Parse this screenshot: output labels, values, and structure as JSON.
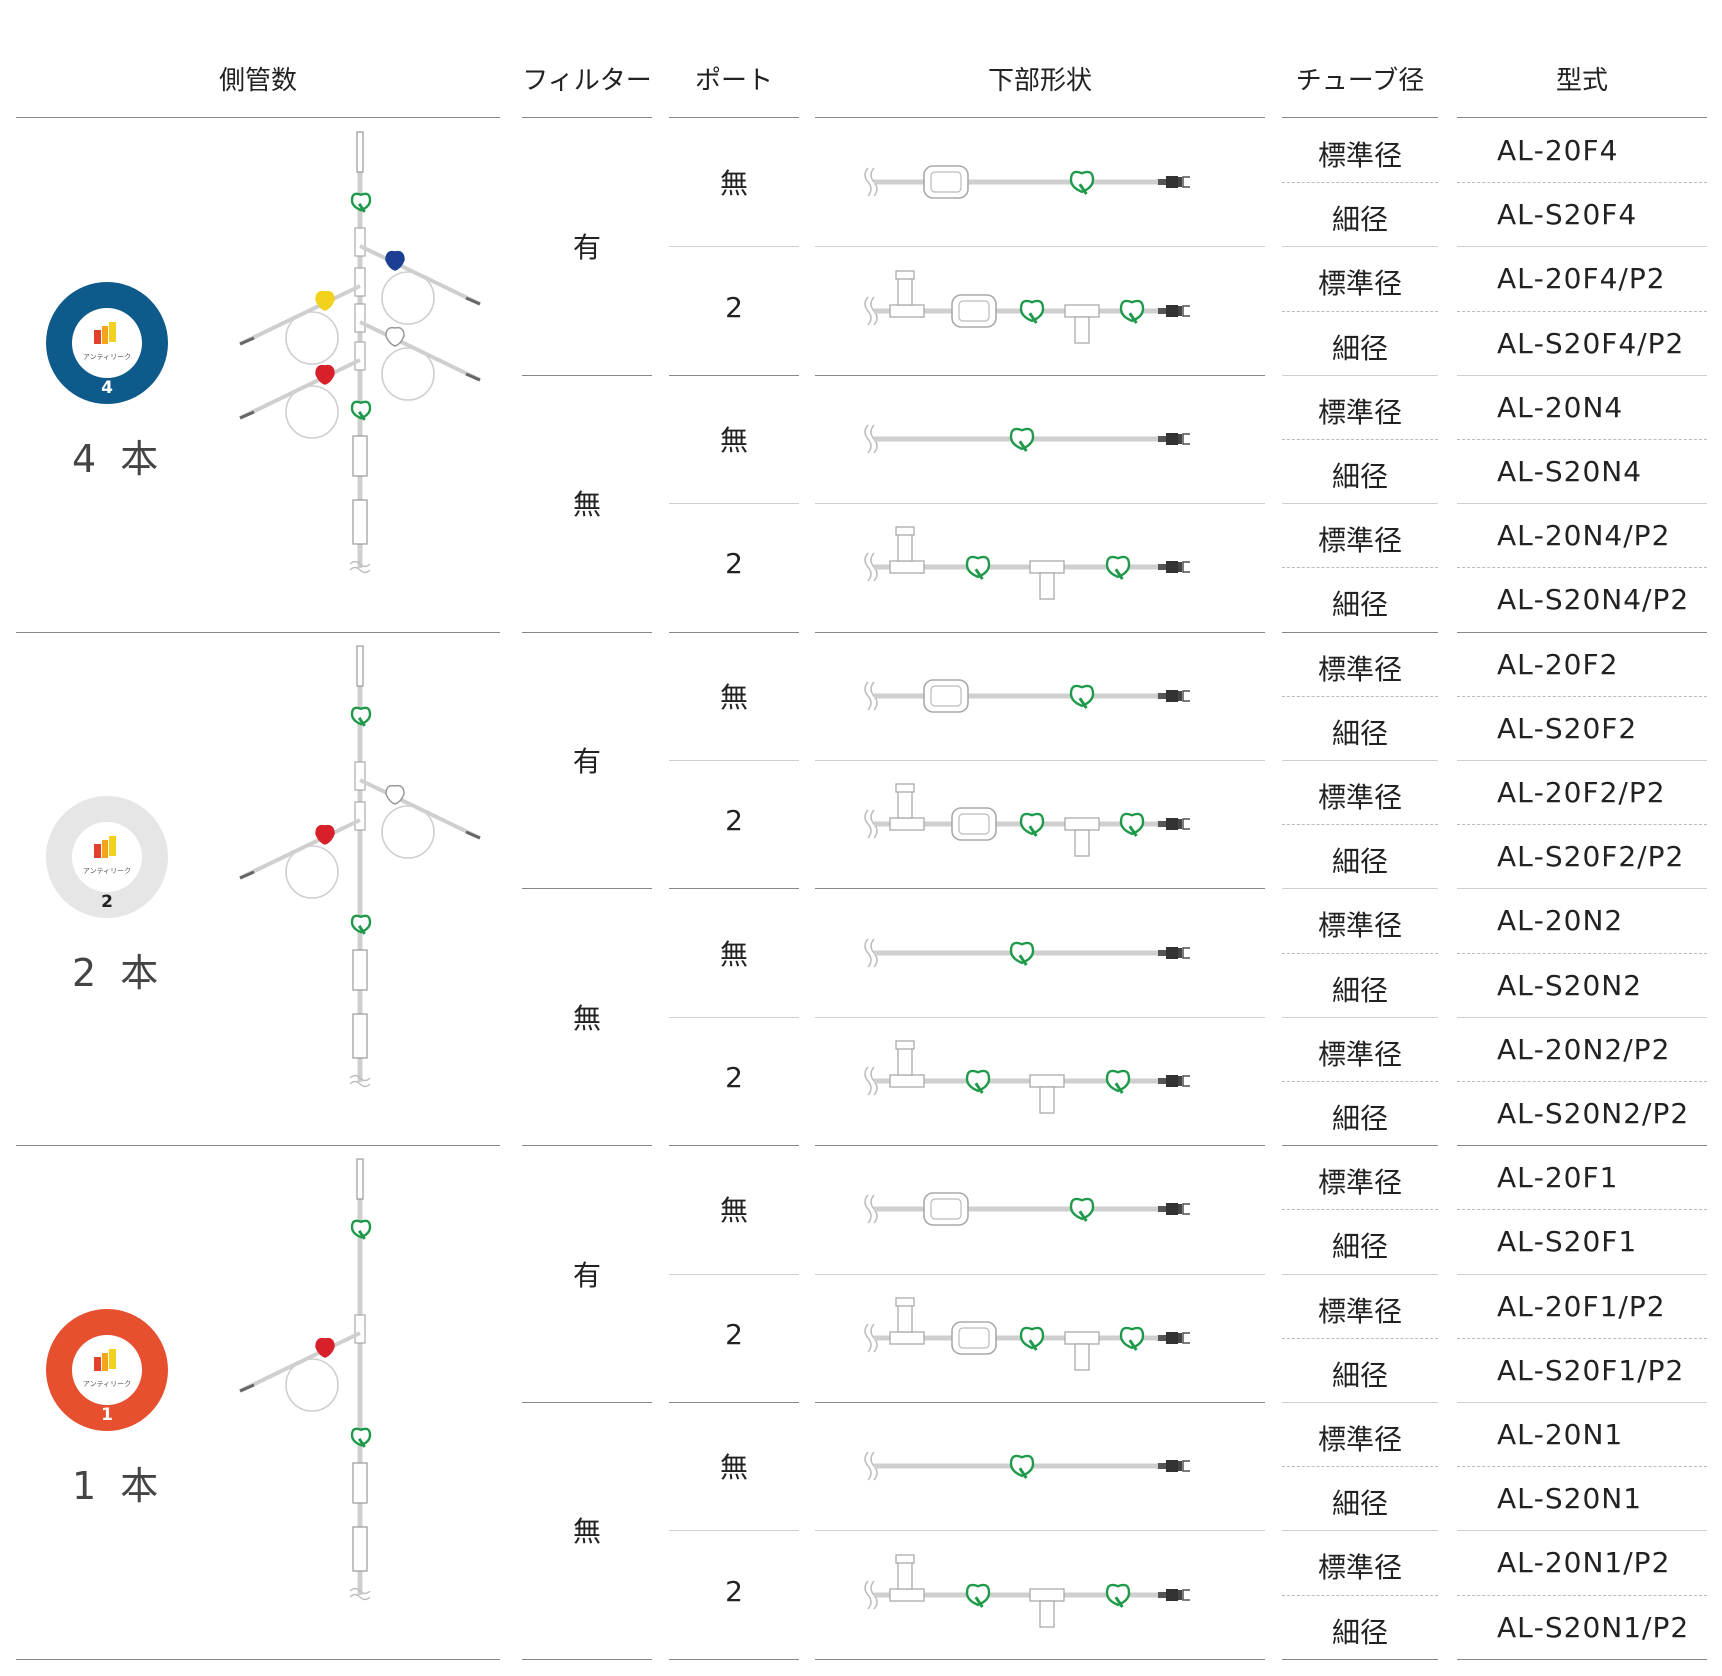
{
  "headers": {
    "sidetubes": "側管数",
    "filter": "フィルター",
    "port": "ポート",
    "shape": "下部形状",
    "tube": "チューブ径",
    "model": "型式"
  },
  "groups": [
    {
      "count_label": "4 本",
      "badge_number": "4",
      "badge_color": "#0e5a8a",
      "badge_text": "アンティリーク",
      "filters": [
        {
          "label": "有",
          "ports": [
            {
              "label": "無",
              "rows": [
                {
                  "tube": "標準径",
                  "model": "AL‐20F4"
                },
                {
                  "tube": "細径",
                  "model": "AL‐S20F4"
                }
              ]
            },
            {
              "label": "2",
              "rows": [
                {
                  "tube": "標準径",
                  "model": "AL‐20F4/P2"
                },
                {
                  "tube": "細径",
                  "model": "AL‐S20F4/P2"
                }
              ]
            }
          ]
        },
        {
          "label": "無",
          "ports": [
            {
              "label": "無",
              "rows": [
                {
                  "tube": "標準径",
                  "model": "AL‐20N4"
                },
                {
                  "tube": "細径",
                  "model": "AL‐S20N4"
                }
              ]
            },
            {
              "label": "2",
              "rows": [
                {
                  "tube": "標準径",
                  "model": "AL‐20N4/P2"
                },
                {
                  "tube": "細径",
                  "model": "AL‐S20N4/P2"
                }
              ]
            }
          ]
        }
      ]
    },
    {
      "count_label": "2 本",
      "badge_number": "2",
      "badge_color": "#e6e6e6",
      "badge_text": "アンティリーク",
      "filters": [
        {
          "label": "有",
          "ports": [
            {
              "label": "無",
              "rows": [
                {
                  "tube": "標準径",
                  "model": "AL‐20F2"
                },
                {
                  "tube": "細径",
                  "model": "AL‐S20F2"
                }
              ]
            },
            {
              "label": "2",
              "rows": [
                {
                  "tube": "標準径",
                  "model": "AL‐20F2/P2"
                },
                {
                  "tube": "細径",
                  "model": "AL‐S20F2/P2"
                }
              ]
            }
          ]
        },
        {
          "label": "無",
          "ports": [
            {
              "label": "無",
              "rows": [
                {
                  "tube": "標準径",
                  "model": "AL‐20N2"
                },
                {
                  "tube": "細径",
                  "model": "AL‐S20N2"
                }
              ]
            },
            {
              "label": "2",
              "rows": [
                {
                  "tube": "標準径",
                  "model": "AL‐20N2/P2"
                },
                {
                  "tube": "細径",
                  "model": "AL‐S20N2/P2"
                }
              ]
            }
          ]
        }
      ]
    },
    {
      "count_label": "1 本",
      "badge_number": "1",
      "badge_color": "#e6502f",
      "badge_text": "アンティリーク",
      "filters": [
        {
          "label": "有",
          "ports": [
            {
              "label": "無",
              "rows": [
                {
                  "tube": "標準径",
                  "model": "AL‐20F1"
                },
                {
                  "tube": "細径",
                  "model": "AL‐S20F1"
                }
              ]
            },
            {
              "label": "2",
              "rows": [
                {
                  "tube": "標準径",
                  "model": "AL‐20F1/P2"
                },
                {
                  "tube": "細径",
                  "model": "AL‐S20F1/P2"
                }
              ]
            }
          ]
        },
        {
          "label": "無",
          "ports": [
            {
              "label": "無",
              "rows": [
                {
                  "tube": "標準径",
                  "model": "AL‐20N1"
                },
                {
                  "tube": "細径",
                  "model": "AL‐S20N1"
                }
              ]
            },
            {
              "label": "2",
              "rows": [
                {
                  "tube": "標準径",
                  "model": "AL‐20N1/P2"
                },
                {
                  "tube": "細径",
                  "model": "AL‐S20N1/P2"
                }
              ]
            }
          ]
        }
      ]
    }
  ],
  "colors": {
    "valve_green": "#1f9a4a",
    "clamp_blue": "#1c3f94",
    "clamp_yellow": "#f2d21c",
    "clamp_red": "#d8202a",
    "tube_gray": "#cfcfcf"
  }
}
